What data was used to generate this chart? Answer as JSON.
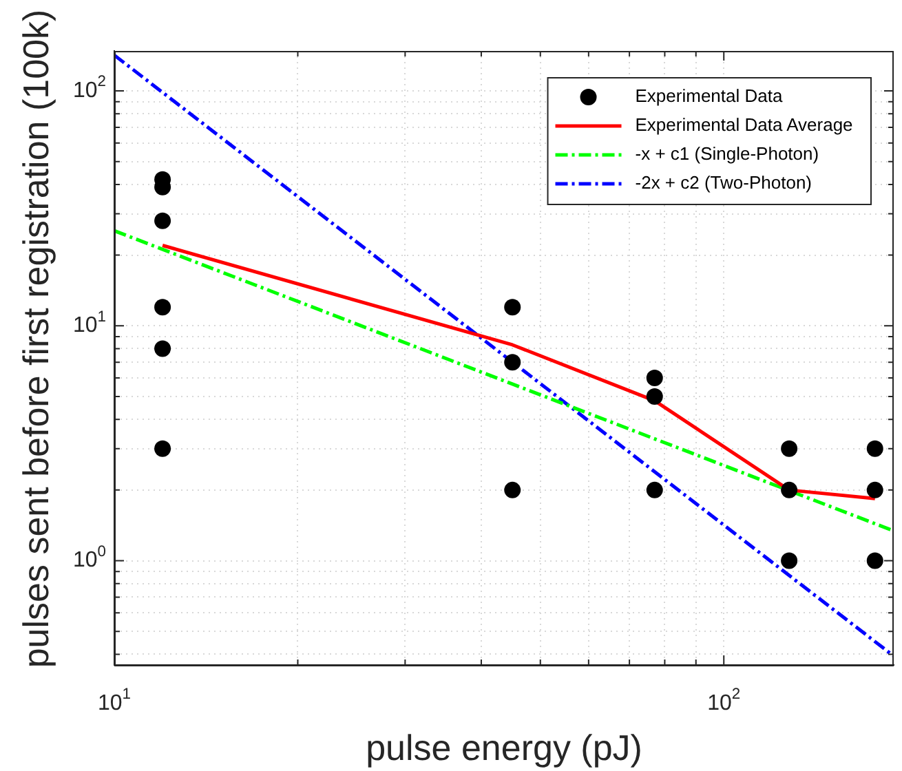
{
  "chart_data": {
    "type": "scatter",
    "xlabel": "pulse energy (pJ)",
    "ylabel": "pulses sent before first registration (100k)",
    "log": "xy",
    "grid": true,
    "legend": "top right",
    "xlim": [
      10,
      190
    ],
    "ylim": [
      0.36,
      148
    ],
    "xticks": [
      {
        "value": 10,
        "label": "10$^{1}$"
      },
      {
        "value": 20,
        "label": null
      },
      {
        "value": 30,
        "label": null
      },
      {
        "value": 40,
        "label": null
      },
      {
        "value": 50,
        "label": null
      },
      {
        "value": 60,
        "label": null
      },
      {
        "value": 70,
        "label": null
      },
      {
        "value": 80,
        "label": null
      },
      {
        "value": 90,
        "label": null
      },
      {
        "value": 100,
        "label": "10$^{2}$"
      }
    ],
    "yticks": [
      {
        "value": 0.4,
        "label": null
      },
      {
        "value": 0.5,
        "label": null
      },
      {
        "value": 0.6,
        "label": null
      },
      {
        "value": 0.7,
        "label": null
      },
      {
        "value": 0.8,
        "label": null
      },
      {
        "value": 0.9,
        "label": null
      },
      {
        "value": 1,
        "label": "10$^{0}$"
      },
      {
        "value": 2,
        "label": null
      },
      {
        "value": 3,
        "label": null
      },
      {
        "value": 4,
        "label": null
      },
      {
        "value": 5,
        "label": null
      },
      {
        "value": 6,
        "label": null
      },
      {
        "value": 7,
        "label": null
      },
      {
        "value": 8,
        "label": null
      },
      {
        "value": 9,
        "label": null
      },
      {
        "value": 10,
        "label": "10$^{1}$"
      },
      {
        "value": 20,
        "label": null
      },
      {
        "value": 30,
        "label": null
      },
      {
        "value": 40,
        "label": null
      },
      {
        "value": 50,
        "label": null
      },
      {
        "value": 60,
        "label": null
      },
      {
        "value": 70,
        "label": null
      },
      {
        "value": 80,
        "label": null
      },
      {
        "value": 90,
        "label": null
      },
      {
        "value": 100,
        "label": "10$^{2}$"
      }
    ],
    "series": [
      {
        "name": "Experimental Data",
        "color": "#000000",
        "marker": "circle",
        "x": [
          12,
          12,
          12,
          12,
          12,
          12,
          45,
          45,
          45,
          77,
          77,
          77,
          128,
          128,
          128,
          177,
          177,
          177
        ],
        "values": [
          42,
          39,
          28,
          12,
          8,
          3,
          12,
          7,
          2,
          6,
          5,
          2,
          3,
          2,
          1,
          3,
          2,
          1
        ]
      },
      {
        "name": "Experimental Data Average",
        "type": "line",
        "color": "#ff0000",
        "marker": "none",
        "line_style": "solid",
        "x": [
          12,
          45,
          77,
          128,
          177
        ],
        "values": [
          22,
          8.3,
          4.8,
          2,
          1.84
        ]
      },
      {
        "name": "-x + c1 (Single-Photon)",
        "type": "line",
        "color": "#00ff00",
        "marker": "none",
        "line_style": "dashed",
        "x": [
          10,
          190
        ],
        "values": [
          25.4,
          1.34
        ]
      },
      {
        "name": "-2x + c2 (Two-Photon)",
        "type": "line",
        "color": "#0000ff",
        "marker": "none",
        "line_style": "dashed",
        "x": [
          10,
          190
        ],
        "values": [
          142,
          0.393
        ]
      }
    ]
  }
}
